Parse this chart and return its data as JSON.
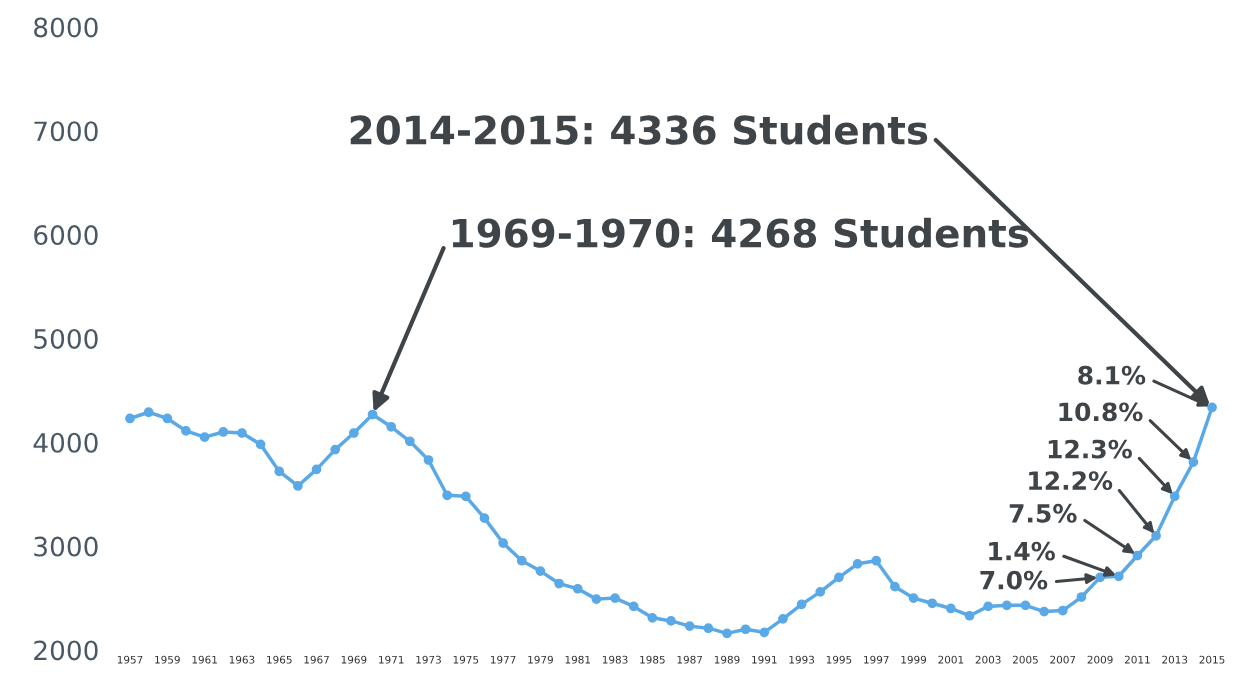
{
  "chart_data": {
    "type": "line",
    "x": [
      1957,
      1958,
      1959,
      1960,
      1961,
      1962,
      1963,
      1964,
      1965,
      1966,
      1967,
      1968,
      1969,
      1970,
      1971,
      1972,
      1973,
      1974,
      1975,
      1976,
      1977,
      1978,
      1979,
      1980,
      1981,
      1982,
      1983,
      1984,
      1985,
      1986,
      1987,
      1988,
      1989,
      1990,
      1991,
      1992,
      1993,
      1994,
      1995,
      1996,
      1997,
      1998,
      1999,
      2000,
      2001,
      2002,
      2003,
      2004,
      2005,
      2006,
      2007,
      2008,
      2009,
      2010,
      2011,
      2012,
      2013,
      2014,
      2015
    ],
    "series": [
      {
        "color": "#5aa9e6",
        "values": [
          4230,
          4290,
          4230,
          4110,
          4050,
          4100,
          4090,
          3980,
          3720,
          3580,
          3740,
          3930,
          4090,
          4268,
          4150,
          4010,
          3830,
          3490,
          3480,
          3270,
          3030,
          2860,
          2760,
          2640,
          2590,
          2490,
          2500,
          2420,
          2310,
          2280,
          2230,
          2210,
          2160,
          2200,
          2170,
          2300,
          2440,
          2560,
          2700,
          2830,
          2860,
          2610,
          2500,
          2450,
          2400,
          2330,
          2420,
          2430,
          2430,
          2370,
          2380,
          2510,
          2700,
          2710,
          2910,
          3100,
          3480,
          3810,
          4336
        ]
      }
    ],
    "xlim": [
      1957,
      2015
    ],
    "ylim": [
      2000,
      8000
    ],
    "xticks": [
      1957,
      1959,
      1961,
      1963,
      1965,
      1967,
      1969,
      1971,
      1973,
      1975,
      1977,
      1979,
      1981,
      1983,
      1985,
      1987,
      1989,
      1991,
      1993,
      1995,
      1997,
      1999,
      2001,
      2003,
      2005,
      2007,
      2009,
      2011,
      2013,
      2015
    ],
    "yticks": [
      2000,
      3000,
      4000,
      5000,
      6000,
      7000,
      8000
    ],
    "marker": "circle",
    "line_style": "solid",
    "grid": false,
    "legend": false,
    "annotations": [
      {
        "text": "2014-2015: 4336 Students",
        "x": 2015,
        "y": 4336
      },
      {
        "text": "1969-1970: 4268 Students",
        "x": 1970,
        "y": 4268
      },
      {
        "text": "8.1%",
        "x": 2015,
        "y": 4336
      },
      {
        "text": "10.8%",
        "x": 2014,
        "y": 3810
      },
      {
        "text": "12.3%",
        "x": 2013,
        "y": 3480
      },
      {
        "text": "12.2%",
        "x": 2012,
        "y": 3100
      },
      {
        "text": "7.5%",
        "x": 2011,
        "y": 2910
      },
      {
        "text": "1.4%",
        "x": 2010,
        "y": 2710
      },
      {
        "text": "7.0%",
        "x": 2009,
        "y": 2700
      }
    ]
  }
}
